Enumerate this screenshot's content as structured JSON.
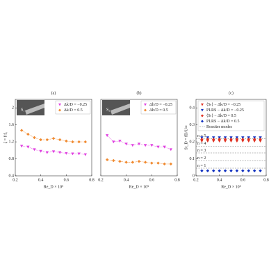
{
  "chart_data": [
    {
      "type": "scatter",
      "title": "(a)",
      "xlabel": "Re_D × 10⁵",
      "ylabel": "ζ = f/f₀",
      "inset_label": "S₁",
      "xlim": [
        0.2,
        0.8
      ],
      "xticks": [
        0.2,
        0.4,
        0.6,
        0.8
      ],
      "ylim": [
        0.4,
        2.2
      ],
      "yticks": [
        0.4,
        0.8,
        1.2,
        1.6,
        2
      ],
      "legend": "upper right",
      "x": [
        0.25,
        0.3,
        0.35,
        0.4,
        0.45,
        0.5,
        0.55,
        0.6,
        0.65,
        0.7,
        0.75
      ],
      "series": [
        {
          "name": "Δk/D = −0.25",
          "color": "#e040e0",
          "marker": "triangle-down",
          "values": [
            1.1,
            1.08,
            1.02,
            0.98,
            0.95,
            0.97,
            0.95,
            0.93,
            0.92,
            0.92,
            0.9
          ]
        },
        {
          "name": "Δk/D = 0.5",
          "color": "#f08a30",
          "marker": "diamond",
          "values": [
            1.47,
            1.38,
            1.3,
            1.25,
            1.25,
            1.28,
            1.25,
            1.22,
            1.2,
            1.2,
            1.2
          ]
        }
      ]
    },
    {
      "type": "scatter",
      "title": "(b)",
      "xlabel": "Re_D × 10⁵",
      "inset_label": "S₂",
      "xlim": [
        0.2,
        0.8
      ],
      "xticks": [
        0.2,
        0.4,
        0.6,
        0.8
      ],
      "ylim": [
        0.4,
        2.2
      ],
      "legend": "upper right",
      "x": [
        0.25,
        0.3,
        0.35,
        0.4,
        0.45,
        0.5,
        0.55,
        0.6,
        0.65,
        0.7,
        0.75
      ],
      "series": [
        {
          "name": "Δh/D = −0.25",
          "color": "#e040e0",
          "marker": "triangle-down",
          "values": [
            1.35,
            1.2,
            1.22,
            1.15,
            1.12,
            1.15,
            1.12,
            1.12,
            1.08,
            1.08,
            1.02
          ]
        },
        {
          "name": "Δh/D = 0.5",
          "color": "#f08a30",
          "marker": "diamond",
          "values": [
            0.78,
            0.76,
            0.74,
            0.72,
            0.72,
            0.74,
            0.72,
            0.7,
            0.7,
            0.68,
            0.68
          ]
        }
      ]
    },
    {
      "type": "scatter",
      "title": "(c)",
      "xlabel": "Re_D × 10⁵",
      "ylabel": "St_D = fD/U∞",
      "xlim": [
        0.2,
        0.8
      ],
      "xticks": [
        0.2,
        0.4,
        0.6,
        0.8
      ],
      "ylim": [
        0,
        0.45
      ],
      "yticks": [
        0,
        0.1,
        0.2,
        0.3,
        0.4
      ],
      "legend": "upper left",
      "x": [
        0.25,
        0.3,
        0.35,
        0.4,
        0.45,
        0.5,
        0.55,
        0.6,
        0.65,
        0.7,
        0.75
      ],
      "series": [
        {
          "name": "⟨Sₜ⟩ − Δk/D = −0.25",
          "color": "#e03020",
          "marker": "triangle-down",
          "values": [
            0.205,
            0.205,
            0.205,
            0.205,
            0.205,
            0.205,
            0.205,
            0.205,
            0.205,
            0.205,
            0.205
          ]
        },
        {
          "name": "PLRS − Δk/D = −0.25",
          "color": "#1030c0",
          "marker": "triangle-down",
          "values": [
            0.225,
            0.225,
            0.225,
            0.225,
            0.225,
            0.225,
            0.225,
            0.225,
            0.225,
            0.225,
            0.225
          ]
        },
        {
          "name": "⟨Sₜ⟩ − Δk/D = 0.5",
          "color": "#e03020",
          "marker": "diamond",
          "values": [
            0.215,
            0.215,
            0.215,
            0.215,
            0.215,
            0.215,
            0.215,
            0.215,
            0.215,
            0.215,
            0.215
          ]
        },
        {
          "name": "PLRS − Δk/D = 0.5",
          "color": "#1030c0",
          "marker": "diamond",
          "values": [
            0.03,
            0.03,
            0.03,
            0.03,
            0.03,
            0.03,
            0.03,
            0.03,
            0.03,
            0.03,
            0.03
          ]
        }
      ],
      "rossiter_modes": {
        "name": "Rossiter modes",
        "labels": [
          "n = 1",
          "n = 2",
          "n = 3",
          "n = 4",
          "n = 5"
        ],
        "values": [
          0.045,
          0.09,
          0.135,
          0.175,
          0.22
        ]
      }
    }
  ]
}
